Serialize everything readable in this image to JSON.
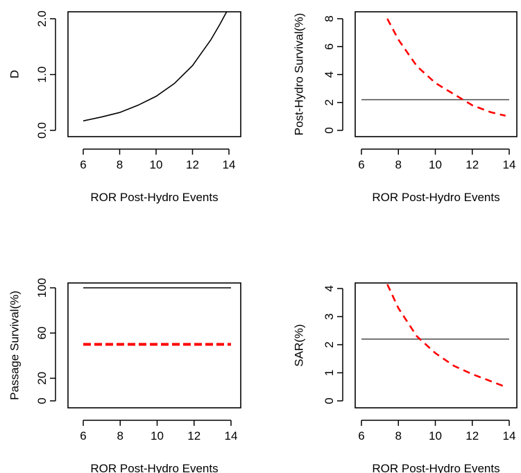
{
  "chart_data": [
    {
      "type": "line",
      "xlabel": "ROR Post-Hydro Events",
      "ylabel": "D",
      "xlim": [
        6,
        14
      ],
      "ylim": [
        0,
        2.0
      ],
      "xticks": [
        "6",
        "8",
        "10",
        "12",
        "14"
      ],
      "yticks": [
        "0.0",
        "1.0",
        "2.0"
      ],
      "ytick_values": [
        0,
        1.0,
        2.0
      ],
      "grid": false,
      "series": [
        {
          "color": "#000000",
          "dash": "solid",
          "x": [
            6.0,
            7.0,
            8.0,
            9.0,
            10.0,
            11.0,
            12.0,
            12.5,
            13.0,
            13.5,
            14.0
          ],
          "y": [
            0.17,
            0.24,
            0.32,
            0.45,
            0.61,
            0.84,
            1.16,
            1.39,
            1.62,
            1.9,
            2.2
          ]
        }
      ]
    },
    {
      "type": "line",
      "xlabel": "ROR Post-Hydro Events",
      "ylabel": "Post-Hydro Survival(%)",
      "xlim": [
        6,
        14
      ],
      "ylim": [
        0,
        8
      ],
      "xticks": [
        "6",
        "8",
        "10",
        "12",
        "14"
      ],
      "yticks": [
        "0",
        "2",
        "4",
        "6",
        "8"
      ],
      "ytick_values": [
        0,
        2,
        4,
        6,
        8
      ],
      "grid": false,
      "series": [
        {
          "color": "#555555",
          "dash": "solid",
          "x": [
            6,
            14
          ],
          "y": [
            2.2,
            2.2
          ]
        },
        {
          "color": "#ff0000",
          "dash": "dashed",
          "x": [
            7.4,
            8.0,
            9.0,
            10.0,
            11.0,
            12.0,
            13.0,
            13.8
          ],
          "y": [
            8.0,
            6.5,
            4.6,
            3.4,
            2.6,
            1.8,
            1.3,
            1.05
          ]
        }
      ]
    },
    {
      "type": "line",
      "xlabel": "ROR Post-Hydro Events",
      "ylabel": "Passage Survival(%)",
      "xlim": [
        6,
        14
      ],
      "ylim": [
        0,
        100
      ],
      "xticks": [
        "6",
        "8",
        "10",
        "12",
        "14"
      ],
      "yticks": [
        "0",
        "20",
        "60",
        "100"
      ],
      "ytick_values": [
        0,
        20,
        60,
        100
      ],
      "grid": false,
      "series": [
        {
          "color": "#000000",
          "dash": "solid",
          "x": [
            6,
            14
          ],
          "y": [
            100,
            100
          ]
        },
        {
          "color": "#ff0000",
          "dash": "dashed-thick",
          "x": [
            6,
            14
          ],
          "y": [
            50,
            50
          ]
        }
      ]
    },
    {
      "type": "line",
      "xlabel": "ROR Post-Hydro Events",
      "ylabel": "SAR(%)",
      "xlim": [
        6,
        14
      ],
      "ylim": [
        0,
        4
      ],
      "xticks": [
        "6",
        "8",
        "10",
        "12",
        "14"
      ],
      "yticks": [
        "0",
        "1",
        "2",
        "3",
        "4"
      ],
      "ytick_values": [
        0,
        1,
        2,
        3,
        4
      ],
      "grid": false,
      "series": [
        {
          "color": "#555555",
          "dash": "solid",
          "x": [
            6,
            14
          ],
          "y": [
            2.2,
            2.2
          ]
        },
        {
          "color": "#ff0000",
          "dash": "dashed",
          "x": [
            7.4,
            8.0,
            9.0,
            10.0,
            11.0,
            12.0,
            13.0,
            13.8
          ],
          "y": [
            4.15,
            3.3,
            2.3,
            1.7,
            1.25,
            0.95,
            0.7,
            0.5
          ]
        }
      ]
    }
  ]
}
